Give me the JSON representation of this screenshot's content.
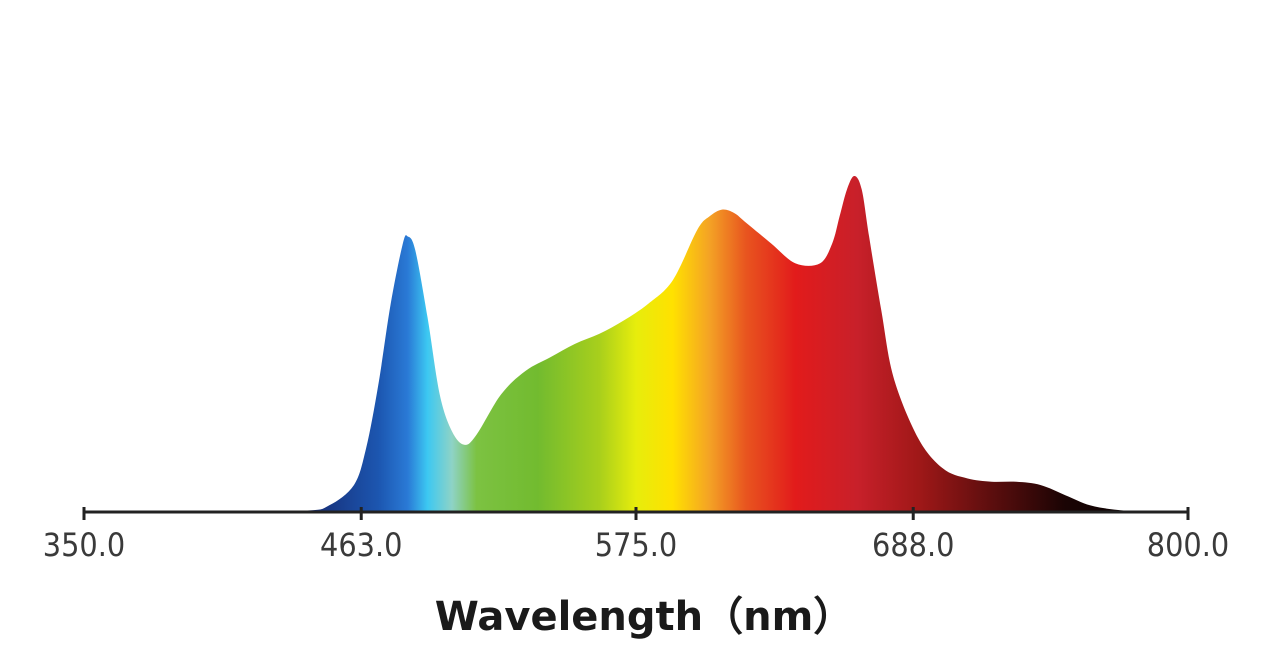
{
  "chart_data": {
    "type": "area",
    "title": "",
    "xlabel": "Wavelength（nm）",
    "ylabel": "",
    "xlim": [
      350,
      800
    ],
    "ylim": [
      0,
      1
    ],
    "grid": false,
    "legend": "none",
    "x_ticks": [
      "350.0",
      "463.0",
      "575.0",
      "688.0",
      "800.0"
    ],
    "series": [
      {
        "x": [
          350,
          400,
          440,
          450,
          460,
          465,
          470,
          475,
          480,
          482,
          485,
          490,
          495,
          500,
          505,
          510,
          520,
          530,
          540,
          550,
          560,
          570,
          580,
          590,
          600,
          605,
          610,
          615,
          620,
          630,
          640,
          650,
          655,
          658,
          661,
          664,
          667,
          670,
          675,
          680,
          690,
          700,
          710,
          720,
          730,
          740,
          750,
          760,
          770,
          780,
          790,
          800
        ],
        "y": [
          0.0,
          0.0,
          0.004,
          0.02,
          0.08,
          0.19,
          0.38,
          0.62,
          0.8,
          0.82,
          0.78,
          0.58,
          0.35,
          0.24,
          0.2,
          0.23,
          0.35,
          0.42,
          0.46,
          0.5,
          0.53,
          0.57,
          0.62,
          0.69,
          0.84,
          0.88,
          0.9,
          0.89,
          0.86,
          0.8,
          0.74,
          0.74,
          0.8,
          0.88,
          0.96,
          1.0,
          0.96,
          0.82,
          0.6,
          0.4,
          0.22,
          0.13,
          0.1,
          0.09,
          0.09,
          0.08,
          0.05,
          0.02,
          0.007,
          0.002,
          0.0,
          0.0
        ]
      }
    ],
    "spectrum_colors": [
      {
        "nm": 350,
        "color": "#0a1040"
      },
      {
        "nm": 445,
        "color": "#17307a"
      },
      {
        "nm": 470,
        "color": "#1c56b0"
      },
      {
        "nm": 482,
        "color": "#2a7ad6"
      },
      {
        "nm": 490,
        "color": "#3cc8f2"
      },
      {
        "nm": 500,
        "color": "#8ed3c6"
      },
      {
        "nm": 510,
        "color": "#7cc242"
      },
      {
        "nm": 535,
        "color": "#72bb2f"
      },
      {
        "nm": 560,
        "color": "#a8cf1c"
      },
      {
        "nm": 575,
        "color": "#e7ed0c"
      },
      {
        "nm": 590,
        "color": "#ffe100"
      },
      {
        "nm": 605,
        "color": "#f4a225"
      },
      {
        "nm": 620,
        "color": "#e8541f"
      },
      {
        "nm": 640,
        "color": "#e21b1b"
      },
      {
        "nm": 665,
        "color": "#c8202a"
      },
      {
        "nm": 690,
        "color": "#a01818"
      },
      {
        "nm": 720,
        "color": "#5c0e0e"
      },
      {
        "nm": 750,
        "color": "#1a0404"
      },
      {
        "nm": 800,
        "color": "#000000"
      }
    ],
    "axis_color": "#222222"
  }
}
